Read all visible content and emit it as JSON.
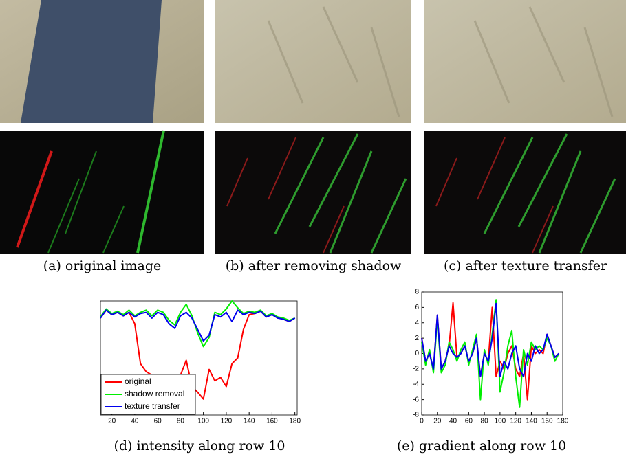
{
  "captions": [
    "(a) original image",
    "(b) after removing shadow",
    "(c) after texture transfer"
  ],
  "chart_data": [
    {
      "type": "line",
      "title": "(d) intensity along row 10",
      "x": [
        10,
        15,
        20,
        25,
        30,
        35,
        40,
        45,
        50,
        55,
        60,
        65,
        70,
        75,
        80,
        85,
        90,
        95,
        100,
        105,
        110,
        115,
        120,
        125,
        130,
        135,
        140,
        145,
        150,
        155,
        160,
        165,
        170,
        175,
        180
      ],
      "xlim": [
        10,
        182
      ],
      "xticks": [
        20,
        40,
        60,
        80,
        100,
        120,
        140,
        160,
        180
      ],
      "ylim": [
        0,
        1
      ],
      "legend": "lower left",
      "series": [
        {
          "name": "original",
          "color": "#ff0000",
          "values": [
            0.85,
            0.92,
            0.88,
            0.9,
            0.87,
            0.9,
            0.8,
            0.45,
            0.38,
            0.35,
            0.33,
            0.3,
            0.28,
            0.2,
            0.35,
            0.48,
            0.25,
            0.2,
            0.14,
            0.4,
            0.3,
            0.33,
            0.25,
            0.45,
            0.5,
            0.75,
            0.88,
            0.89,
            0.91,
            0.86,
            0.88,
            0.85,
            0.84,
            0.82,
            0.85
          ]
        },
        {
          "name": "shadow removal",
          "color": "#00ee00",
          "values": [
            0.86,
            0.93,
            0.89,
            0.91,
            0.88,
            0.92,
            0.87,
            0.9,
            0.92,
            0.87,
            0.92,
            0.9,
            0.83,
            0.79,
            0.9,
            0.97,
            0.87,
            0.72,
            0.6,
            0.68,
            0.9,
            0.88,
            0.93,
            1.0,
            0.94,
            0.89,
            0.91,
            0.9,
            0.92,
            0.87,
            0.89,
            0.86,
            0.85,
            0.83,
            0.85
          ]
        },
        {
          "name": "texture transfer",
          "color": "#0000ee",
          "values": [
            0.85,
            0.92,
            0.88,
            0.9,
            0.87,
            0.9,
            0.86,
            0.89,
            0.9,
            0.85,
            0.9,
            0.88,
            0.8,
            0.76,
            0.87,
            0.9,
            0.85,
            0.75,
            0.65,
            0.7,
            0.88,
            0.86,
            0.9,
            0.82,
            0.92,
            0.88,
            0.9,
            0.89,
            0.91,
            0.86,
            0.88,
            0.85,
            0.84,
            0.82,
            0.85
          ]
        }
      ]
    },
    {
      "type": "line",
      "title": "(e) gradient along row 10",
      "x": [
        0,
        5,
        10,
        15,
        20,
        25,
        30,
        35,
        40,
        45,
        50,
        55,
        60,
        65,
        70,
        75,
        80,
        85,
        90,
        95,
        100,
        105,
        110,
        115,
        120,
        125,
        130,
        135,
        140,
        145,
        150,
        155,
        160,
        165,
        170,
        175
      ],
      "xlim": [
        0,
        180
      ],
      "xticks": [
        0,
        20,
        40,
        60,
        80,
        100,
        120,
        140,
        160,
        180
      ],
      "ylim": [
        -8,
        8
      ],
      "yticks": [
        -8,
        -6,
        -4,
        -2,
        0,
        2,
        4,
        6,
        8
      ],
      "series": [
        {
          "name": "original",
          "color": "#ff0000",
          "values": [
            2,
            -1,
            0,
            -2,
            5,
            -2,
            -1,
            1,
            6.6,
            -0.5,
            0,
            1,
            -1,
            0,
            2,
            -3,
            0,
            -1,
            6,
            -3,
            -1,
            -2,
            0,
            1,
            -2,
            -3,
            0,
            -6,
            1,
            0,
            0.5,
            0,
            2.5,
            1,
            -0.5,
            0
          ]
        },
        {
          "name": "shadow removal",
          "color": "#00ee00",
          "values": [
            1.5,
            -1.5,
            0.5,
            -2.5,
            4.5,
            -2.5,
            -1.5,
            1.5,
            0.5,
            -1,
            0.5,
            1.5,
            -1.5,
            0.5,
            2.5,
            -6,
            0.5,
            -1.5,
            2.5,
            7,
            -5,
            -2.5,
            1,
            3,
            -3,
            -7,
            0.5,
            -1.5,
            1.5,
            0.5,
            1,
            0.5,
            2,
            1,
            -1,
            0
          ]
        },
        {
          "name": "texture transfer",
          "color": "#0000ee",
          "values": [
            2,
            -1,
            0,
            -2,
            5,
            -2,
            -1,
            1,
            0,
            -0.5,
            0,
            1,
            -1,
            0,
            2,
            -3,
            0,
            -1,
            2,
            6.5,
            -3,
            -1,
            -2,
            0,
            1,
            -2,
            -3,
            0,
            -1,
            1,
            0,
            0.5,
            2.5,
            1,
            -0.5,
            0
          ]
        }
      ]
    }
  ]
}
